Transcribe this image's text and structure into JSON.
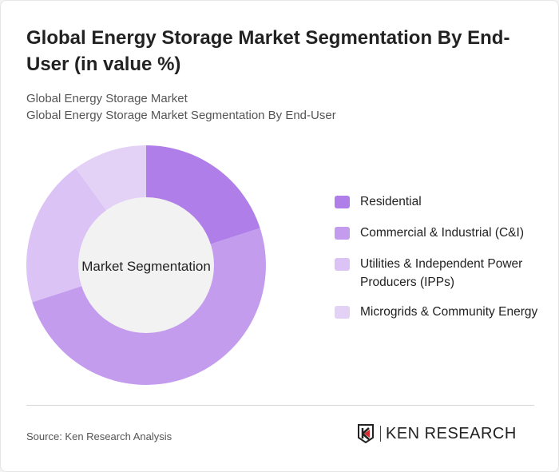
{
  "title": "Global Energy Storage Market Segmentation By End-User (in value %)",
  "subtitle1": "Global Energy Storage Market",
  "subtitle2": "Global Energy Storage Market Segmentation By End-User",
  "chart_data": {
    "type": "donut",
    "center_label": "Market Segmentation",
    "categories": [
      "Residential",
      "Commercial & Industrial (C&I)",
      "Utilities & Independent Power Producers (IPPs)",
      "Microgrids & Community Energy"
    ],
    "values": [
      20,
      50,
      20,
      10
    ],
    "colors": [
      "#b07ee8",
      "#c49cee",
      "#dbc3f5",
      "#e3d1f6"
    ],
    "legend_position": "right"
  },
  "source": "Source: Ken Research Analysis",
  "logo_text": "KEN RESEARCH"
}
